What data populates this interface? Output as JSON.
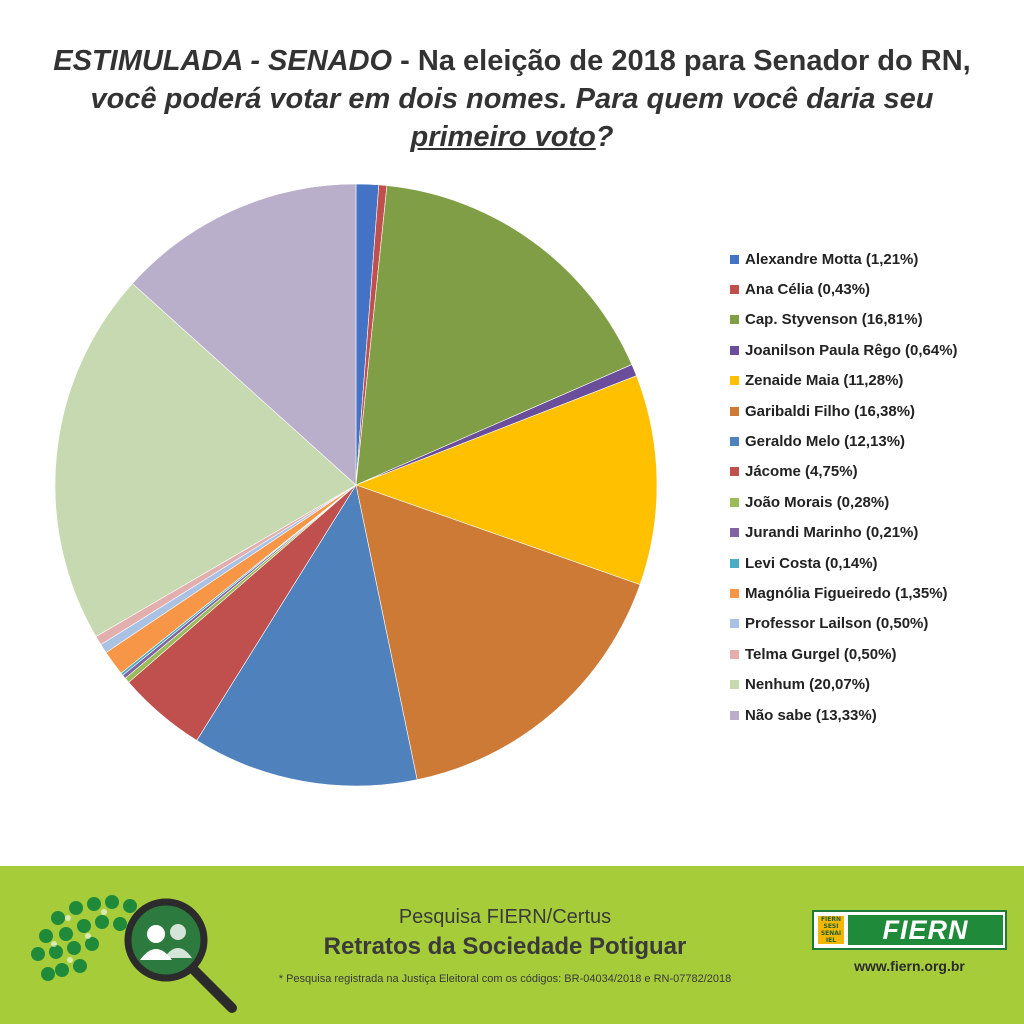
{
  "title": {
    "p1": "ESTIMULADA - SENADO",
    "p2": " - Na eleição de 2018 para Senador do RN,",
    "p3": "você poderá votar em dois nomes. Para quem você daria seu",
    "p4": "primeiro voto",
    "p5": "?"
  },
  "chart_data": {
    "type": "pie",
    "legend_position": "right",
    "slices": [
      {
        "label": "Alexandre Motta (1,21%)",
        "name": "Alexandre Motta",
        "value": 1.21,
        "color": "#4472C4"
      },
      {
        "label": "Ana Célia (0,43%)",
        "name": "Ana Célia",
        "value": 0.43,
        "color": "#C0504D"
      },
      {
        "label": "Cap. Styvenson (16,81%)",
        "name": "Cap. Styvenson",
        "value": 16.81,
        "color": "#7F9E45"
      },
      {
        "label": "Joanilson Paula Rêgo (0,64%)",
        "name": "Joanilson Paula Rêgo",
        "value": 0.64,
        "color": "#6B4E9B"
      },
      {
        "label": "Zenaide Maia (11,28%)",
        "name": "Zenaide Maia",
        "value": 11.28,
        "color": "#FFC000"
      },
      {
        "label": "Garibaldi Filho (16,38%)",
        "name": "Garibaldi Filho",
        "value": 16.38,
        "color": "#CC7A36"
      },
      {
        "label": "Geraldo Melo (12,13%)",
        "name": "Geraldo Melo",
        "value": 12.13,
        "color": "#4F81BD"
      },
      {
        "label": "Jácome (4,75%)",
        "name": "Jácome",
        "value": 4.75,
        "color": "#C0504D"
      },
      {
        "label": "João Morais (0,28%)",
        "name": "João Morais",
        "value": 0.28,
        "color": "#9BBB59"
      },
      {
        "label": "Jurandi Marinho (0,21%)",
        "name": "Jurandi Marinho",
        "value": 0.21,
        "color": "#8064A2"
      },
      {
        "label": "Levi Costa (0,14%)",
        "name": "Levi Costa",
        "value": 0.14,
        "color": "#4BACC6"
      },
      {
        "label": "Magnólia Figueiredo (1,35%)",
        "name": "Magnólia Figueiredo",
        "value": 1.35,
        "color": "#F79646"
      },
      {
        "label": "Professor Lailson (0,50%)",
        "name": "Professor Lailson",
        "value": 0.5,
        "color": "#A9C1E3"
      },
      {
        "label": "Telma Gurgel (0,50%)",
        "name": "Telma Gurgel",
        "value": 0.5,
        "color": "#E2AFAE"
      },
      {
        "label": "Nenhum (20,07%)",
        "name": "Nenhum",
        "value": 20.07,
        "color": "#C6D9B0"
      },
      {
        "label": "Não sabe (13,33%)",
        "name": "Não sabe",
        "value": 13.33,
        "color": "#B9AFCB"
      }
    ]
  },
  "footer": {
    "survey_name": "Pesquisa FIERN/Certus",
    "survey_title": "Retratos da Sociedade Potiguar",
    "note": "* Pesquisa registrada na Justiça Eleitoral com os códigos: BR-04034/2018 e RN-07782/2018",
    "brand": "FIERN",
    "brand_mini": [
      "FIERN",
      "SESI",
      "SENAI",
      "IEL"
    ],
    "url": "www.fiern.org.br",
    "background_color": "#a6cc3a"
  }
}
